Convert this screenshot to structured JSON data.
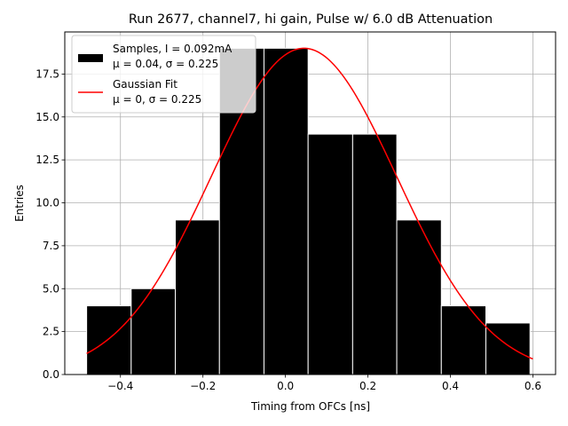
{
  "chart_data": {
    "type": "bar",
    "title": "Run 2677, channel7, hi gain, Pulse w/ 6.0 dB Attenuation",
    "xlabel": "Timing from OFCs [ns]",
    "ylabel": "Entries",
    "xlim": [
      -0.535,
      0.655
    ],
    "ylim": [
      0,
      19.95
    ],
    "grid": true,
    "legend_position": "top-left",
    "xticks": [
      -0.4,
      -0.2,
      0.0,
      0.2,
      0.4,
      0.6
    ],
    "xtick_labels": [
      "−0.4",
      "−0.2",
      "0.0",
      "0.2",
      "0.4",
      "0.6"
    ],
    "yticks": [
      0,
      2.5,
      5,
      7.5,
      10,
      12.5,
      15,
      17.5
    ],
    "ytick_labels": [
      "0.0",
      "2.5",
      "5.0",
      "7.5",
      "10.0",
      "12.5",
      "15.0",
      "17.5"
    ],
    "histogram": {
      "name_line1": "Samples, I = 0.092mA",
      "name_line2": "μ = 0.04, σ = 0.225",
      "color": "#000000",
      "edge_color": "#ffffff",
      "bin_edges": [
        -0.482,
        -0.374,
        -0.267,
        -0.16,
        -0.052,
        0.055,
        0.163,
        0.27,
        0.378,
        0.486,
        0.593
      ],
      "counts": [
        4,
        5,
        9,
        19,
        19,
        14,
        14,
        9,
        4,
        3
      ]
    },
    "fit": {
      "name_line1": "Gaussian Fit",
      "name_line2": "μ = 0, σ = 0.225",
      "color": "#ff0000",
      "amplitude": 19.0,
      "mean": 0.045,
      "sigma": 0.225,
      "x_range": [
        -0.482,
        0.6
      ]
    }
  }
}
